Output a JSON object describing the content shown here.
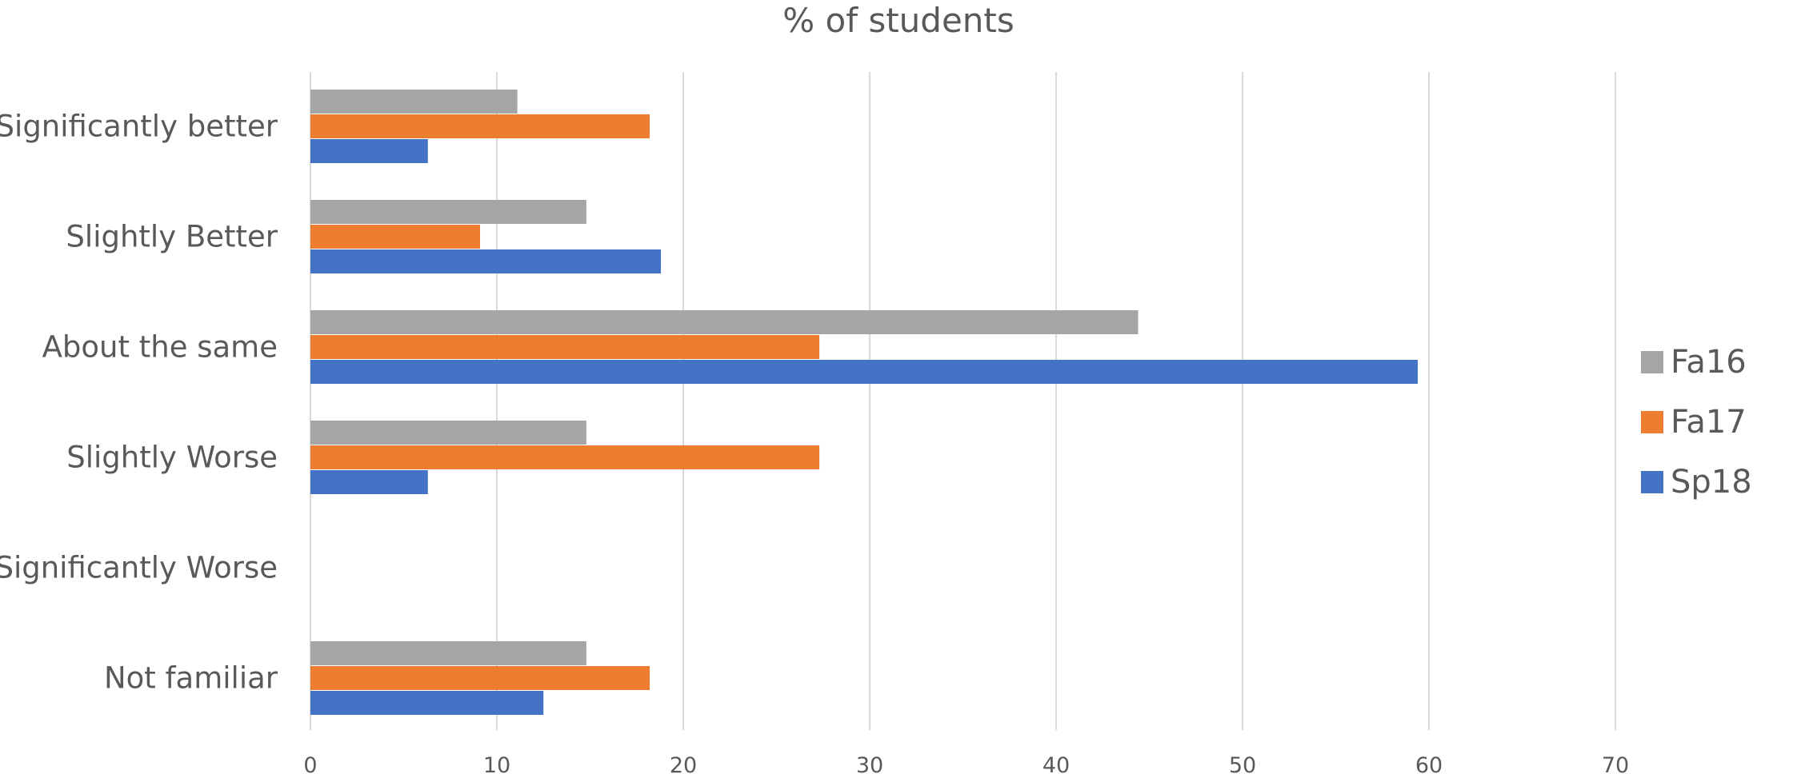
{
  "chart_data": {
    "type": "bar",
    "orientation": "horizontal",
    "title": "% of students",
    "xlabel": "",
    "ylabel": "",
    "categories": [
      "Significantly better",
      "Slightly Better",
      "About the same",
      "Slightly Worse",
      "Significantly Worse",
      "Not familiar"
    ],
    "series": [
      {
        "name": "Fa16",
        "color": "#a5a5a5",
        "values": [
          11.1,
          14.8,
          44.4,
          14.8,
          0,
          14.8
        ]
      },
      {
        "name": "Fa17",
        "color": "#ed7d31",
        "values": [
          18.2,
          9.1,
          27.3,
          27.3,
          0,
          18.2
        ]
      },
      {
        "name": "Sp18",
        "color": "#4472c4",
        "values": [
          6.3,
          18.8,
          59.4,
          6.3,
          0,
          12.5
        ]
      }
    ],
    "xlim": [
      0,
      70
    ],
    "xticks": [
      0,
      10,
      20,
      30,
      40,
      50,
      60,
      70
    ],
    "grid": true,
    "legend_position": "right"
  }
}
